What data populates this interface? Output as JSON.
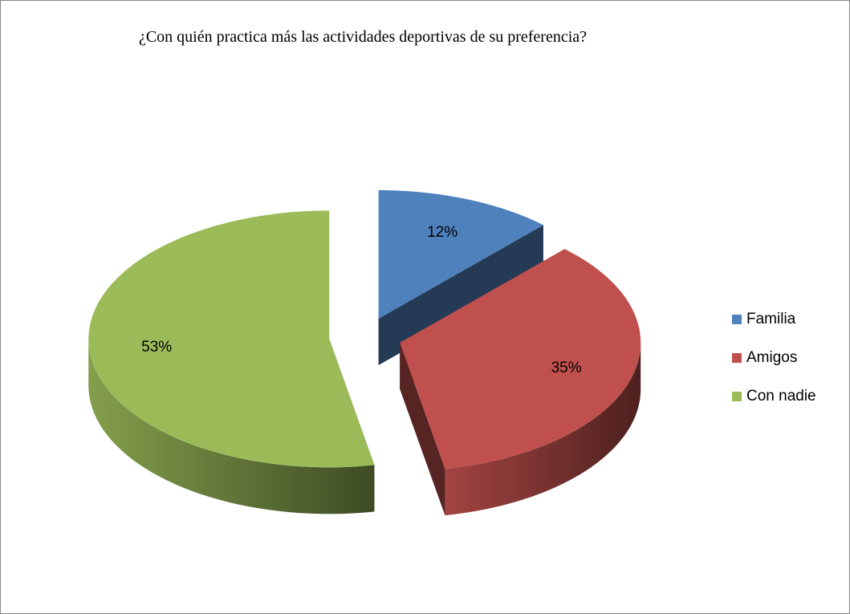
{
  "chart_data": {
    "type": "pie",
    "title": "¿Con quién practica más las actividades deportivas de su preferencia?",
    "categories": [
      "Familia",
      "Amigos",
      "Con nadie"
    ],
    "values": [
      12,
      35,
      53
    ],
    "value_labels": [
      "12%",
      "35%",
      "53%"
    ],
    "colors": [
      "#4f81bd",
      "#c0504d",
      "#9bbb59"
    ],
    "legend": "right"
  }
}
